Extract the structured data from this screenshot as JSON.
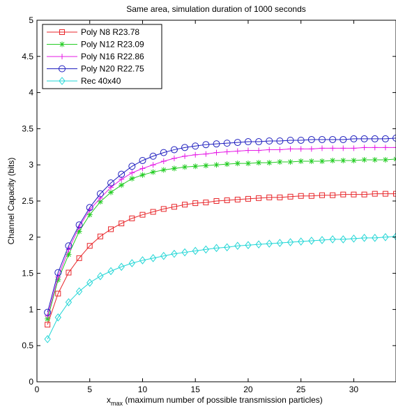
{
  "chart_data": {
    "type": "line",
    "title": "Same area, simulation duration of 1000 seconds",
    "ylabel": "Channel Capacity (bits)",
    "xlabel_main": "x",
    "xlabel_sub": "max",
    "xlabel_rest": " (maximum number of possible transmission particles)",
    "xlim": [
      0,
      34
    ],
    "ylim": [
      0,
      5
    ],
    "xticks": [
      0,
      5,
      10,
      15,
      20,
      25,
      30
    ],
    "xtick_labels": [
      "0",
      "5",
      "10",
      "15",
      "20",
      "25",
      "30"
    ],
    "yticks": [
      0,
      0.5,
      1,
      1.5,
      2,
      2.5,
      3,
      3.5,
      4,
      4.5,
      5
    ],
    "ytick_labels": [
      "0",
      "0.5",
      "1",
      "1.5",
      "2",
      "2.5",
      "3",
      "3.5",
      "4",
      "4.5",
      "5"
    ],
    "grid": false,
    "legend_position": "top-left",
    "x": [
      1,
      2,
      3,
      4,
      5,
      6,
      7,
      8,
      9,
      10,
      11,
      12,
      13,
      14,
      15,
      16,
      17,
      18,
      19,
      20,
      21,
      22,
      23,
      24,
      25,
      26,
      27,
      28,
      29,
      30,
      31,
      32,
      33,
      34
    ],
    "series": [
      {
        "name": "Poly N8 R23.78",
        "color": "#e8262a",
        "marker": "square",
        "values": [
          0.79,
          1.22,
          1.51,
          1.71,
          1.88,
          2.01,
          2.11,
          2.19,
          2.26,
          2.31,
          2.35,
          2.39,
          2.42,
          2.45,
          2.47,
          2.48,
          2.5,
          2.51,
          2.52,
          2.53,
          2.54,
          2.55,
          2.55,
          2.56,
          2.57,
          2.57,
          2.58,
          2.58,
          2.59,
          2.59,
          2.59,
          2.6,
          2.6,
          2.6
        ]
      },
      {
        "name": "Poly N12 R23.09",
        "color": "#22cc22",
        "marker": "star",
        "values": [
          0.87,
          1.41,
          1.76,
          2.08,
          2.31,
          2.49,
          2.62,
          2.72,
          2.81,
          2.86,
          2.9,
          2.93,
          2.95,
          2.97,
          2.98,
          2.99,
          3.0,
          3.01,
          3.02,
          3.02,
          3.03,
          3.03,
          3.04,
          3.04,
          3.05,
          3.05,
          3.05,
          3.06,
          3.06,
          3.06,
          3.07,
          3.07,
          3.07,
          3.08
        ]
      },
      {
        "name": "Poly N16 R22.86",
        "color": "#e61ae6",
        "marker": "plus",
        "values": [
          0.91,
          1.45,
          1.83,
          2.14,
          2.38,
          2.54,
          2.69,
          2.8,
          2.89,
          2.95,
          3.0,
          3.05,
          3.09,
          3.12,
          3.14,
          3.15,
          3.17,
          3.18,
          3.19,
          3.2,
          3.2,
          3.21,
          3.21,
          3.22,
          3.22,
          3.22,
          3.23,
          3.23,
          3.23,
          3.23,
          3.24,
          3.24,
          3.24,
          3.24
        ]
      },
      {
        "name": "Poly N20 R22.75",
        "color": "#1f1fbf",
        "marker": "circle",
        "values": [
          0.96,
          1.51,
          1.88,
          2.17,
          2.41,
          2.6,
          2.75,
          2.87,
          2.98,
          3.06,
          3.12,
          3.17,
          3.21,
          3.24,
          3.26,
          3.28,
          3.29,
          3.3,
          3.31,
          3.32,
          3.32,
          3.33,
          3.33,
          3.34,
          3.34,
          3.35,
          3.35,
          3.35,
          3.35,
          3.36,
          3.36,
          3.36,
          3.36,
          3.37
        ]
      },
      {
        "name": "Rec 40x40",
        "color": "#22d6d6",
        "marker": "diamond",
        "values": [
          0.59,
          0.89,
          1.1,
          1.25,
          1.37,
          1.46,
          1.53,
          1.59,
          1.64,
          1.68,
          1.71,
          1.74,
          1.77,
          1.79,
          1.81,
          1.83,
          1.85,
          1.86,
          1.88,
          1.89,
          1.9,
          1.91,
          1.92,
          1.93,
          1.94,
          1.95,
          1.96,
          1.97,
          1.97,
          1.98,
          1.99,
          1.99,
          2.0,
          2.01
        ]
      }
    ]
  }
}
